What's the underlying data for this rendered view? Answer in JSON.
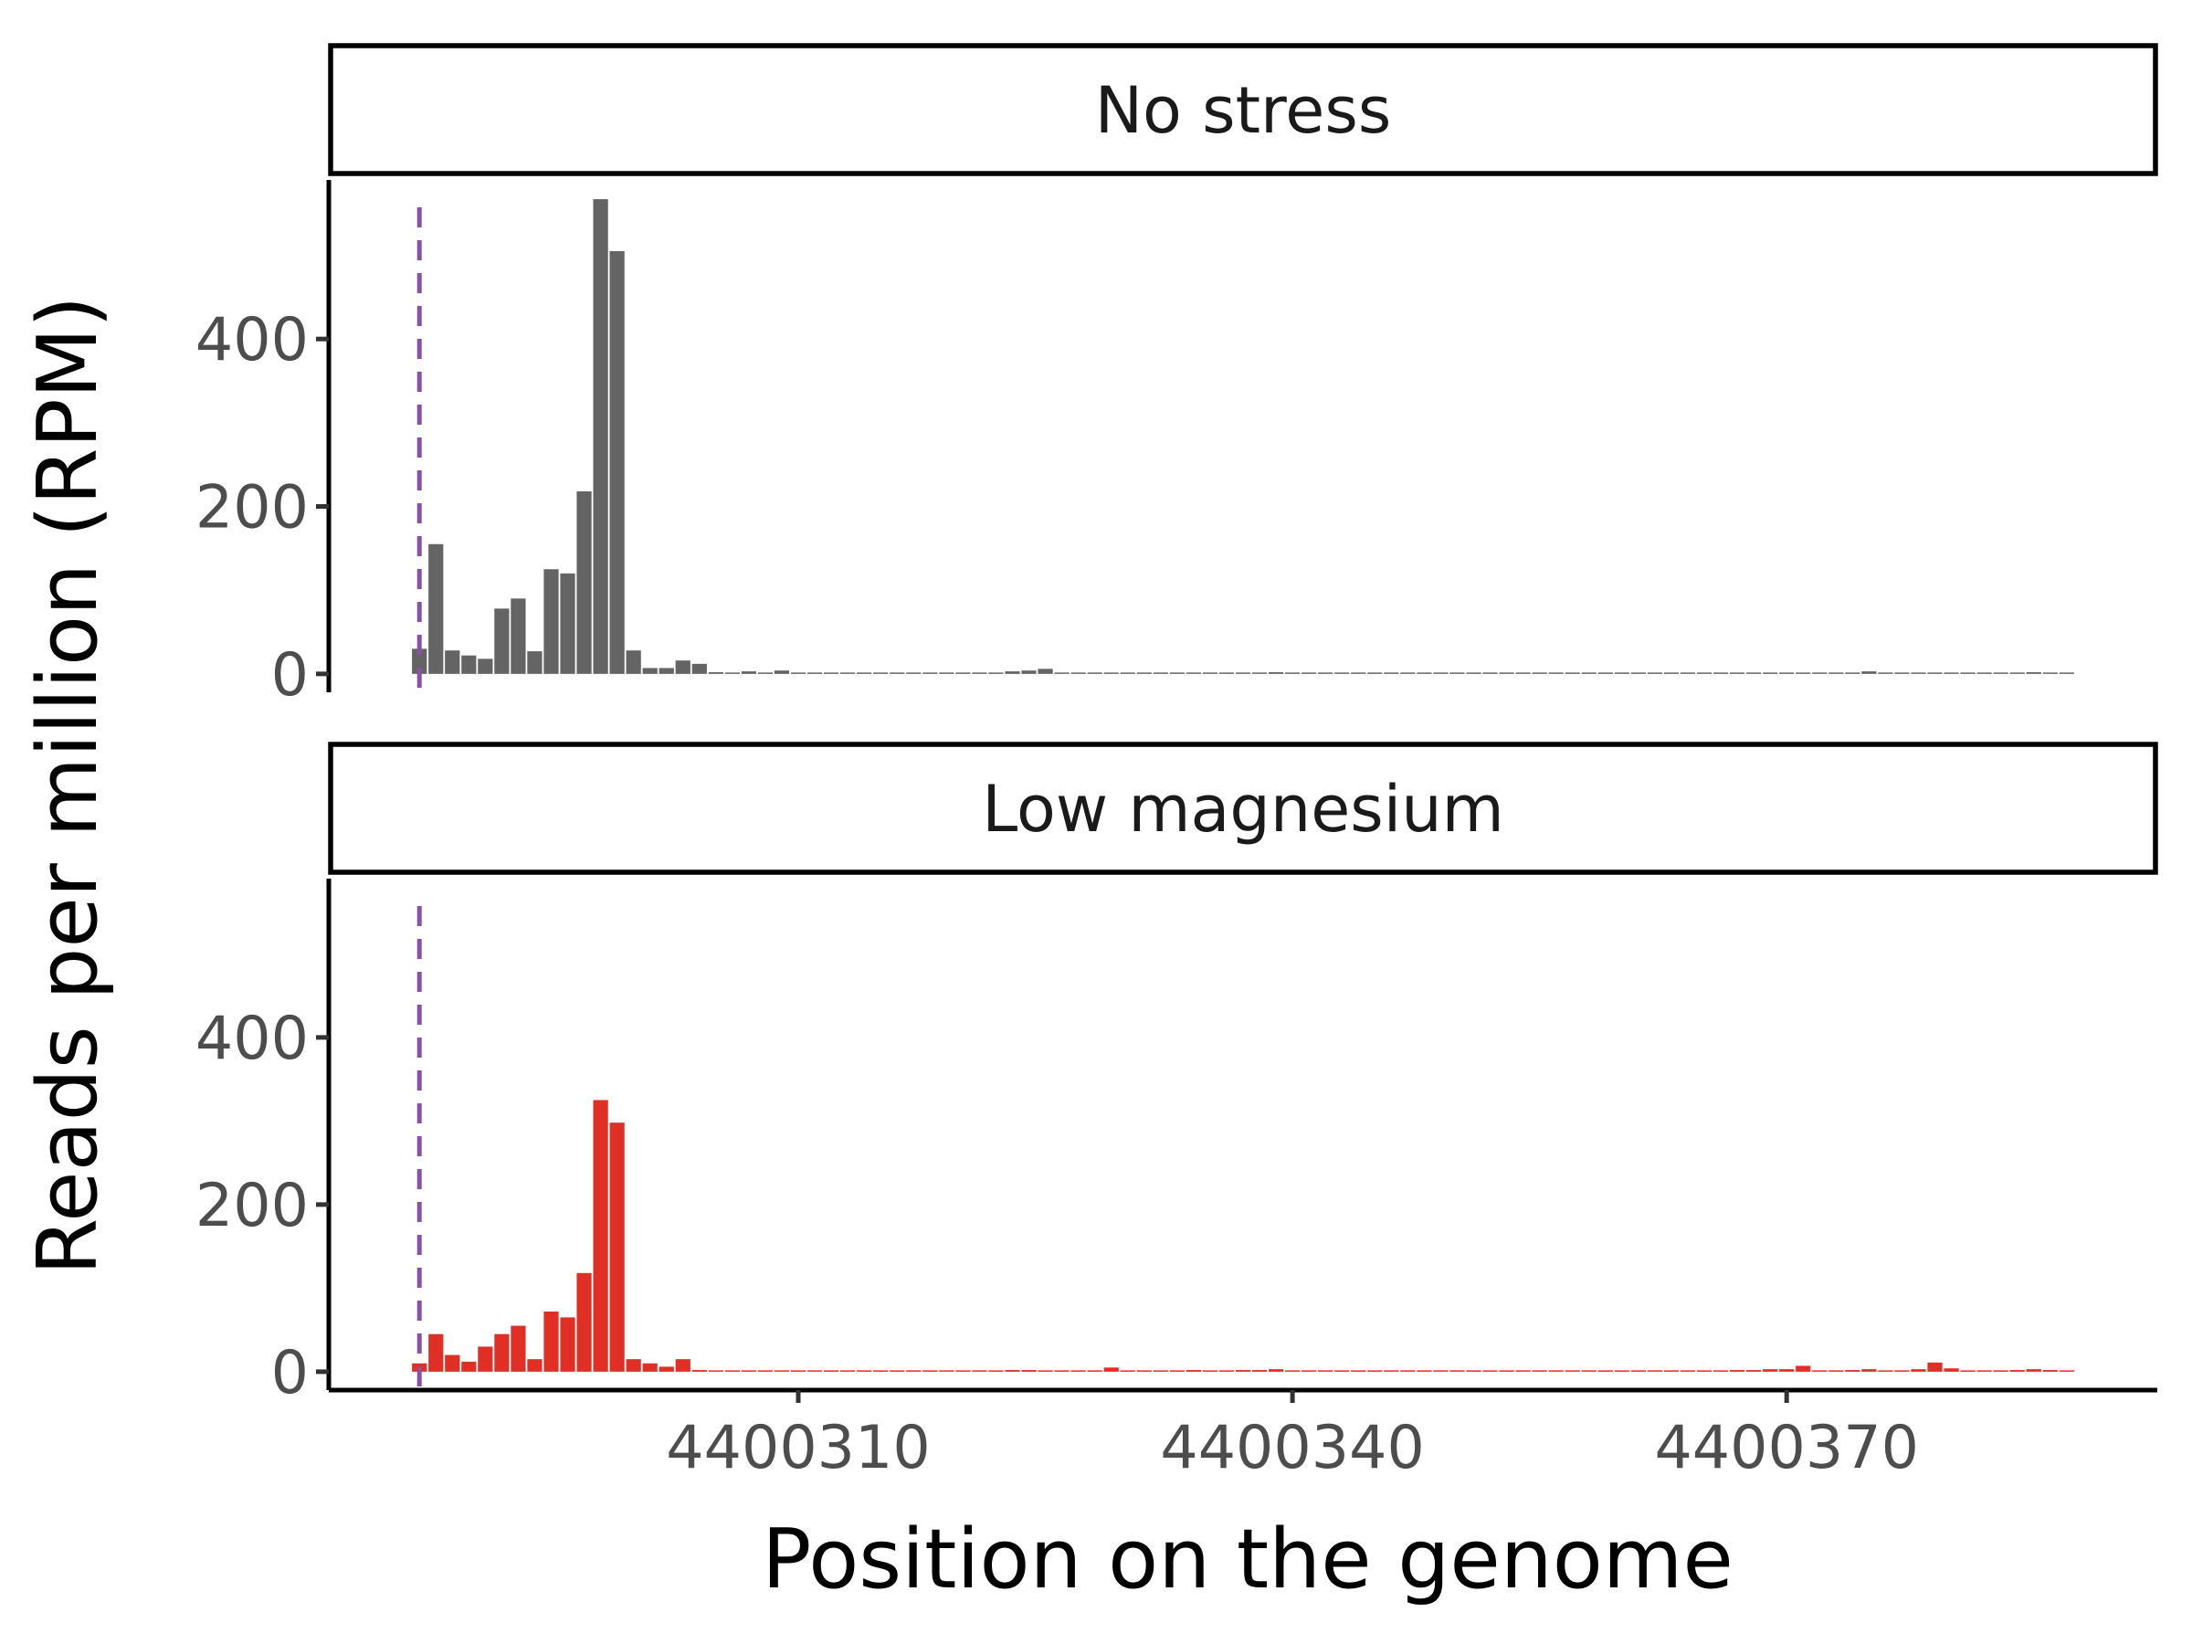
{
  "chart_data": {
    "type": "bar",
    "xlabel": "Position on the genome",
    "ylabel": "Reads per million (RPM)",
    "xlim": [
      4400281.5,
      4400392.5
    ],
    "ylim": [
      -22,
      590
    ],
    "x_ticks": [
      4400310,
      4400340,
      4400370
    ],
    "x_tick_labels": [
      "4400310",
      "4400340",
      "4400370"
    ],
    "y_ticks": [
      0,
      200,
      400
    ],
    "y_tick_labels": [
      "0",
      "200",
      "400"
    ],
    "grid": false,
    "legend": "none",
    "vline": {
      "x": 4400287,
      "color": "#8a4fa8",
      "style": "dashed"
    },
    "panels": [
      {
        "label": "No stress",
        "color": "#646464",
        "x": [
          4400287,
          4400288,
          4400289,
          4400290,
          4400291,
          4400292,
          4400293,
          4400294,
          4400295,
          4400296,
          4400297,
          4400298,
          4400299,
          4400300,
          4400301,
          4400302,
          4400303,
          4400304,
          4400305,
          4400306,
          4400307,
          4400308,
          4400309,
          4400310,
          4400311,
          4400312,
          4400313,
          4400314,
          4400315,
          4400316,
          4400317,
          4400318,
          4400319,
          4400320,
          4400321,
          4400322,
          4400323,
          4400324,
          4400325,
          4400326,
          4400327,
          4400328,
          4400329,
          4400330,
          4400331,
          4400332,
          4400333,
          4400334,
          4400335,
          4400336,
          4400337,
          4400338,
          4400339,
          4400340,
          4400341,
          4400342,
          4400343,
          4400344,
          4400345,
          4400346,
          4400347,
          4400348,
          4400349,
          4400350,
          4400351,
          4400352,
          4400353,
          4400354,
          4400355,
          4400356,
          4400357,
          4400358,
          4400359,
          4400360,
          4400361,
          4400362,
          4400363,
          4400364,
          4400365,
          4400366,
          4400367,
          4400368,
          4400369,
          4400370,
          4400371,
          4400372,
          4400373,
          4400374,
          4400375,
          4400376,
          4400377,
          4400378,
          4400379,
          4400380,
          4400381,
          4400382,
          4400383,
          4400384,
          4400385,
          4400386,
          4400387
        ],
        "values": [
          30,
          155,
          28,
          22,
          18,
          78,
          90,
          27,
          125,
          120,
          218,
          567,
          505,
          28,
          7,
          7,
          16,
          12,
          2,
          1,
          3,
          1,
          4,
          0,
          0,
          0,
          0,
          0,
          0,
          1,
          1,
          1,
          0,
          0,
          1,
          1,
          3,
          4,
          6,
          0,
          0,
          0,
          1,
          1,
          0,
          1,
          1,
          0,
          0,
          0,
          0,
          0,
          2,
          1,
          1,
          0,
          0,
          0,
          0,
          0,
          0,
          0,
          0,
          1,
          1,
          0,
          0,
          0,
          0,
          0,
          0,
          0,
          0,
          0,
          0,
          0,
          0,
          0,
          0,
          0,
          0,
          0,
          0,
          0,
          0,
          1,
          1,
          1,
          3,
          1,
          0,
          0,
          0,
          0,
          0,
          1,
          1,
          1,
          2,
          1,
          0
        ]
      },
      {
        "label": "Low magnesium",
        "color": "#e03026",
        "x": [
          4400287,
          4400288,
          4400289,
          4400290,
          4400291,
          4400292,
          4400293,
          4400294,
          4400295,
          4400296,
          4400297,
          4400298,
          4400299,
          4400300,
          4400301,
          4400302,
          4400303,
          4400304,
          4400305,
          4400306,
          4400307,
          4400308,
          4400309,
          4400310,
          4400311,
          4400312,
          4400313,
          4400314,
          4400315,
          4400316,
          4400317,
          4400318,
          4400319,
          4400320,
          4400321,
          4400322,
          4400323,
          4400324,
          4400325,
          4400326,
          4400327,
          4400328,
          4400329,
          4400330,
          4400331,
          4400332,
          4400333,
          4400334,
          4400335,
          4400336,
          4400337,
          4400338,
          4400339,
          4400340,
          4400341,
          4400342,
          4400343,
          4400344,
          4400345,
          4400346,
          4400347,
          4400348,
          4400349,
          4400350,
          4400351,
          4400352,
          4400353,
          4400354,
          4400355,
          4400356,
          4400357,
          4400358,
          4400359,
          4400360,
          4400361,
          4400362,
          4400363,
          4400364,
          4400365,
          4400366,
          4400367,
          4400368,
          4400369,
          4400370,
          4400371,
          4400372,
          4400373,
          4400374,
          4400375,
          4400376,
          4400377,
          4400378,
          4400379,
          4400380,
          4400381,
          4400382,
          4400383,
          4400384,
          4400385,
          4400386,
          4400387
        ],
        "values": [
          10,
          45,
          20,
          12,
          30,
          45,
          55,
          15,
          72,
          65,
          118,
          325,
          298,
          15,
          10,
          6,
          15,
          2,
          0,
          0,
          1,
          1,
          1,
          1,
          0,
          0,
          1,
          1,
          0,
          0,
          1,
          0,
          0,
          1,
          1,
          0,
          2,
          2,
          1,
          0,
          1,
          1,
          5,
          0,
          1,
          1,
          1,
          2,
          0,
          0,
          2,
          2,
          3,
          1,
          0,
          0,
          0,
          1,
          1,
          1,
          0,
          1,
          0,
          1,
          0,
          0,
          0,
          0,
          0,
          0,
          0,
          0,
          0,
          0,
          0,
          1,
          0,
          1,
          1,
          0,
          2,
          2,
          3,
          3,
          7,
          1,
          1,
          2,
          3,
          1,
          1,
          3,
          11,
          4,
          1,
          1,
          1,
          2,
          3,
          2,
          0
        ]
      }
    ]
  }
}
